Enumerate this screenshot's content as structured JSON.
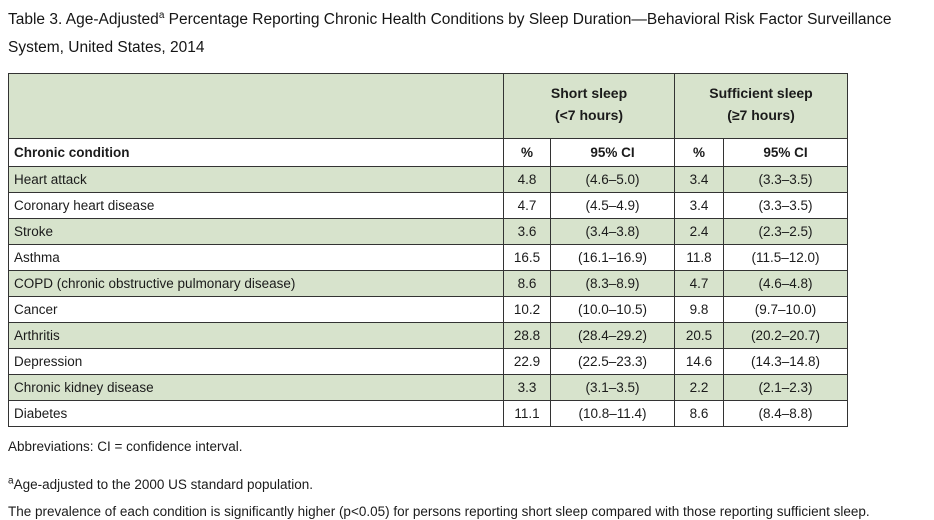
{
  "page": {
    "title_prefix": "Table 3. Age-Adjusted",
    "title_superscript": "a",
    "title_suffix": " Percentage Reporting Chronic Health Conditions by Sleep Duration—Behavioral Risk Factor Surveillance System, United States, 2014"
  },
  "colors": {
    "row_green": "#d7e3cc",
    "border": "#333333",
    "text": "#1b1b1b"
  },
  "table": {
    "group_headers": [
      {
        "line1": "Short sleep",
        "line2": "(<7 hours)"
      },
      {
        "line1": "Sufficient sleep",
        "line2": "(≥7 hours)"
      }
    ],
    "column_headers": [
      "Chronic condition",
      "%",
      "95% CI",
      "%",
      "95% CI"
    ],
    "rows": [
      {
        "condition": "Heart attack",
        "short_pct": "4.8",
        "short_ci": "(4.6–5.0)",
        "suff_pct": "3.4",
        "suff_ci": "(3.3–3.5)"
      },
      {
        "condition": "Coronary heart disease",
        "short_pct": "4.7",
        "short_ci": "(4.5–4.9)",
        "suff_pct": "3.4",
        "suff_ci": "(3.3–3.5)"
      },
      {
        "condition": "Stroke",
        "short_pct": "3.6",
        "short_ci": "(3.4–3.8)",
        "suff_pct": "2.4",
        "suff_ci": "(2.3–2.5)"
      },
      {
        "condition": "Asthma",
        "short_pct": "16.5",
        "short_ci": "(16.1–16.9)",
        "suff_pct": "11.8",
        "suff_ci": "(11.5–12.0)"
      },
      {
        "condition": "COPD (chronic obstructive pulmonary disease)",
        "short_pct": "8.6",
        "short_ci": "(8.3–8.9)",
        "suff_pct": "4.7",
        "suff_ci": "(4.6–4.8)"
      },
      {
        "condition": "Cancer",
        "short_pct": "10.2",
        "short_ci": "(10.0–10.5)",
        "suff_pct": "9.8",
        "suff_ci": "(9.7–10.0)"
      },
      {
        "condition": "Arthritis",
        "short_pct": "28.8",
        "short_ci": "(28.4–29.2)",
        "suff_pct": "20.5",
        "suff_ci": "(20.2–20.7)"
      },
      {
        "condition": "Depression",
        "short_pct": "22.9",
        "short_ci": "(22.5–23.3)",
        "suff_pct": "14.6",
        "suff_ci": "(14.3–14.8)"
      },
      {
        "condition": "Chronic kidney disease",
        "short_pct": "3.3",
        "short_ci": "(3.1–3.5)",
        "suff_pct": "2.2",
        "suff_ci": "(2.1–2.3)"
      },
      {
        "condition": "Diabetes",
        "short_pct": "11.1",
        "short_ci": "(10.8–11.4)",
        "suff_pct": "8.6",
        "suff_ci": "(8.4–8.8)"
      }
    ]
  },
  "footnotes": {
    "abbreviations": "Abbreviations: CI = confidence interval.",
    "age_adjusted_superscript": "a",
    "age_adjusted": "Age-adjusted to the 2000 US standard population.",
    "prevalence_note": "The prevalence of each condition is significantly higher (p<0.05) for persons reporting short sleep compared with those reporting sufficient sleep."
  }
}
